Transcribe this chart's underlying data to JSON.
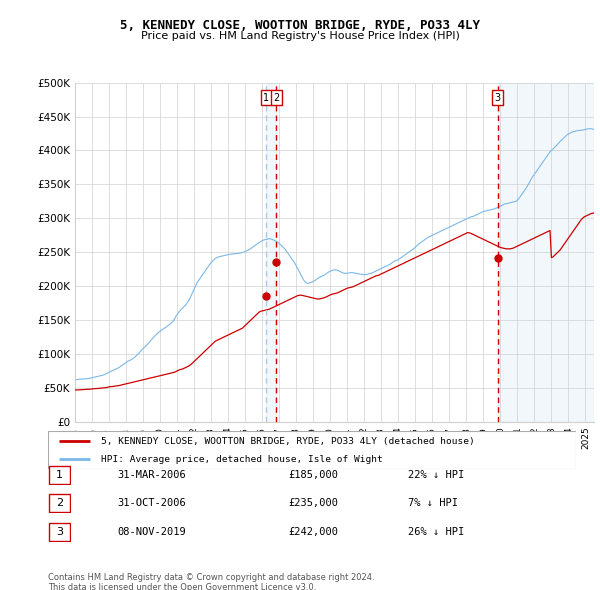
{
  "title": "5, KENNEDY CLOSE, WOOTTON BRIDGE, RYDE, PO33 4LY",
  "subtitle": "Price paid vs. HM Land Registry's House Price Index (HPI)",
  "ylabel_ticks": [
    "£0",
    "£50K",
    "£100K",
    "£150K",
    "£200K",
    "£250K",
    "£300K",
    "£350K",
    "£400K",
    "£450K",
    "£500K"
  ],
  "ytick_values": [
    0,
    50000,
    100000,
    150000,
    200000,
    250000,
    300000,
    350000,
    400000,
    450000,
    500000
  ],
  "xlim": [
    1995.0,
    2025.5
  ],
  "ylim": [
    0,
    500000
  ],
  "hpi_color": "#7ab8e8",
  "price_color": "#cc0000",
  "vline1_color": "#aacce8",
  "vline2_color": "#cc0000",
  "transactions": [
    {
      "label": "1",
      "year": 2006.246,
      "price": 185000,
      "date": "31-MAR-2006",
      "pct": "22%",
      "dir": "↓"
    },
    {
      "label": "2",
      "year": 2006.831,
      "price": 235000,
      "date": "31-OCT-2006",
      "pct": "7%",
      "dir": "↓"
    },
    {
      "label": "3",
      "year": 2019.846,
      "price": 242000,
      "date": "08-NOV-2019",
      "pct": "26%",
      "dir": "↓"
    }
  ],
  "legend_price_label": "5, KENNEDY CLOSE, WOOTTON BRIDGE, RYDE, PO33 4LY (detached house)",
  "legend_hpi_label": "HPI: Average price, detached house, Isle of Wight",
  "footer1": "Contains HM Land Registry data © Crown copyright and database right 2024.",
  "footer2": "This data is licensed under the Open Government Licence v3.0.",
  "hpi_monthly": {
    "start_year": 1995.0,
    "step": 0.08333,
    "values": [
      62000,
      62200,
      62500,
      62800,
      63000,
      63100,
      63200,
      63300,
      63500,
      63700,
      64000,
      64500,
      65000,
      65500,
      66000,
      66500,
      67000,
      67500,
      68000,
      68500,
      69000,
      70000,
      71000,
      72000,
      73000,
      74000,
      75000,
      76000,
      77000,
      78000,
      79000,
      80000,
      81500,
      83000,
      84500,
      86000,
      87500,
      89000,
      90000,
      91000,
      92000,
      93500,
      95000,
      97000,
      99000,
      101000,
      103500,
      106000,
      108000,
      110000,
      112000,
      114000,
      116500,
      119000,
      121000,
      123500,
      126000,
      128000,
      130000,
      132000,
      133500,
      135000,
      136500,
      138000,
      139500,
      141000,
      142500,
      144000,
      146000,
      148000,
      151000,
      155000,
      158000,
      161000,
      163500,
      166000,
      168000,
      170000,
      172000,
      175000,
      178000,
      182000,
      186500,
      191000,
      195500,
      200000,
      204500,
      208000,
      211000,
      214000,
      217000,
      220000,
      223000,
      226000,
      229000,
      232000,
      234500,
      237000,
      239000,
      241000,
      242000,
      243000,
      243500,
      244000,
      244500,
      245000,
      245500,
      246000,
      246500,
      247000,
      247200,
      247400,
      247500,
      247800,
      248000,
      248200,
      248500,
      249000,
      249500,
      250000,
      251000,
      252000,
      253000,
      254000,
      255500,
      257000,
      258500,
      260000,
      261500,
      263000,
      264500,
      266000,
      267000,
      268000,
      268500,
      269000,
      269500,
      270000,
      269500,
      269000,
      268000,
      267000,
      266000,
      265000,
      263000,
      261000,
      259000,
      257000,
      255000,
      252000,
      249000,
      246000,
      243000,
      240000,
      237000,
      234000,
      230000,
      226000,
      222000,
      218000,
      214000,
      210000,
      207000,
      205000,
      204000,
      204500,
      205000,
      206000,
      207000,
      208000,
      209500,
      211000,
      212500,
      213500,
      214500,
      215500,
      216500,
      218000,
      219500,
      221000,
      222000,
      223000,
      223500,
      224000,
      224000,
      223500,
      222500,
      221500,
      220500,
      219500,
      219000,
      219000,
      219000,
      219500,
      219800,
      220000,
      219800,
      219500,
      219000,
      218500,
      218000,
      217800,
      217500,
      217000,
      217000,
      217000,
      217500,
      218000,
      218500,
      219000,
      220000,
      221000,
      222000,
      223000,
      224000,
      225000,
      226000,
      227000,
      228000,
      229000,
      230000,
      231000,
      232000,
      233500,
      235000,
      236500,
      237500,
      238000,
      239000,
      240500,
      242000,
      243500,
      245000,
      246500,
      248000,
      249500,
      251000,
      252500,
      254000,
      255500,
      257500,
      259500,
      261500,
      263000,
      264500,
      266000,
      267500,
      269000,
      270500,
      272000,
      273000,
      274000,
      275000,
      276000,
      277000,
      278000,
      279000,
      280000,
      281000,
      282000,
      283000,
      284000,
      285000,
      286000,
      287000,
      288000,
      289000,
      290000,
      291000,
      292000,
      293000,
      294000,
      295000,
      296000,
      297000,
      298000,
      299000,
      300000,
      301000,
      302000,
      302500,
      303000,
      304000,
      305000,
      306000,
      307000,
      308000,
      309000,
      310000,
      310500,
      311000,
      311500,
      312000,
      312500,
      313000,
      313500,
      314000,
      315000,
      316000,
      317000,
      318000,
      319000,
      320000,
      321000,
      321500,
      322000,
      322500,
      323000,
      323500,
      324000,
      324500,
      325000,
      327000,
      329000,
      332000,
      335000,
      338000,
      341000,
      344000,
      347500,
      351000,
      355000,
      359000,
      362000,
      365000,
      368000,
      371000,
      374000,
      377000,
      380000,
      383000,
      386000,
      389000,
      392000,
      395000,
      398000,
      400000,
      402000,
      404000,
      406000,
      408500,
      410500,
      413000,
      415000,
      417000,
      419000,
      421000,
      423000,
      424000,
      425500,
      426500,
      427500,
      428000,
      428500,
      429000,
      429500,
      429500,
      430000,
      430000,
      430500,
      431000,
      431500,
      432000,
      432000,
      432000,
      431500,
      431000,
      430500,
      430000,
      429500,
      429000,
      428000,
      427000,
      426000,
      425500,
      425000,
      424000,
      423000,
      422500,
      422000,
      421500,
      421000,
      420500,
      420000
    ]
  },
  "price_monthly": {
    "start_year": 1995.0,
    "step": 0.08333,
    "values": [
      47000,
      47000,
      47000,
      47200,
      47500,
      47500,
      47500,
      47800,
      48000,
      48000,
      48000,
      48200,
      48500,
      48800,
      49000,
      49000,
      49200,
      49500,
      49500,
      49800,
      50000,
      50200,
      50500,
      51000,
      51500,
      52000,
      52000,
      52200,
      52500,
      52800,
      53000,
      53500,
      54000,
      54500,
      55000,
      55500,
      56000,
      56500,
      57000,
      57500,
      58000,
      58500,
      59000,
      59500,
      60000,
      60500,
      61000,
      61500,
      62000,
      62500,
      63000,
      63500,
      64000,
      64500,
      65000,
      65500,
      66000,
      66500,
      67000,
      67500,
      68000,
      68500,
      69000,
      69500,
      70000,
      70500,
      71000,
      71500,
      72000,
      72500,
      73000,
      74000,
      75000,
      76000,
      77000,
      77500,
      78000,
      79000,
      80000,
      81000,
      82000,
      83500,
      85000,
      87000,
      89000,
      91000,
      93000,
      95000,
      97000,
      99000,
      101000,
      103000,
      105000,
      107000,
      109000,
      111000,
      113000,
      115000,
      117000,
      119000,
      120000,
      121000,
      122000,
      123000,
      124000,
      125000,
      126000,
      127000,
      128000,
      129000,
      130000,
      131000,
      132000,
      133000,
      134000,
      135000,
      136000,
      137000,
      138000,
      140000,
      142000,
      144000,
      146000,
      148000,
      150000,
      152000,
      154000,
      156000,
      158000,
      160000,
      162000,
      163000,
      163500,
      164000,
      164500,
      165000,
      165500,
      166000,
      167000,
      168000,
      169000,
      170000,
      171000,
      172000,
      173000,
      174000,
      175000,
      176000,
      177000,
      178000,
      179000,
      180000,
      181000,
      182000,
      183000,
      184000,
      185000,
      186000,
      186500,
      186800,
      186500,
      186000,
      185500,
      185000,
      184500,
      184000,
      183500,
      183000,
      182500,
      182000,
      181500,
      181000,
      181000,
      181500,
      182000,
      182500,
      183000,
      184000,
      185000,
      186000,
      187000,
      188000,
      188500,
      189000,
      189500,
      190000,
      191000,
      192000,
      193000,
      194000,
      195000,
      196000,
      197000,
      197500,
      198000,
      198500,
      199000,
      200000,
      201000,
      202000,
      203000,
      204000,
      205000,
      206000,
      207000,
      208000,
      209000,
      210000,
      211000,
      212000,
      213000,
      214000,
      215000,
      215500,
      216000,
      217000,
      218000,
      219000,
      220000,
      221000,
      222000,
      223000,
      224000,
      225000,
      226000,
      227000,
      228000,
      229000,
      230000,
      231000,
      232000,
      233000,
      234000,
      235000,
      236000,
      237000,
      238000,
      239000,
      240000,
      241000,
      242000,
      243000,
      244000,
      245000,
      246000,
      247000,
      248000,
      249000,
      250000,
      251000,
      252000,
      253000,
      254000,
      255000,
      256000,
      257000,
      258000,
      259000,
      260000,
      261000,
      262000,
      263000,
      264000,
      265000,
      266000,
      267000,
      268000,
      269000,
      270000,
      271000,
      272000,
      273000,
      274000,
      275000,
      276000,
      277000,
      278000,
      279000,
      278500,
      278000,
      277000,
      276000,
      275000,
      274000,
      273000,
      272000,
      271000,
      270000,
      269000,
      268000,
      267000,
      266000,
      265000,
      264000,
      263000,
      262000,
      261000,
      260000,
      259000,
      258000,
      257000,
      256500,
      256000,
      255500,
      255000,
      255000,
      255000,
      255000,
      255500,
      256000,
      257000,
      258000,
      259000,
      260000,
      261000,
      262000,
      263000,
      264000,
      265000,
      266000,
      267000,
      268000,
      269000,
      270000,
      271000,
      272000,
      273000,
      274000,
      275000,
      276000,
      277000,
      278000,
      279000,
      280000,
      281000,
      282000,
      242000,
      243000,
      245000,
      247000,
      249000,
      251000,
      253000,
      256000,
      259000,
      262000,
      265000,
      268000,
      271000,
      274000,
      277000,
      280000,
      283000,
      286000,
      289000,
      292000,
      295000,
      298000,
      300000,
      302000,
      303000,
      304000,
      305000,
      306000,
      307000,
      307500,
      307800,
      308000,
      307500,
      307000,
      306500,
      306000,
      305000,
      304000,
      303000,
      302000,
      301000,
      300000,
      299000,
      298000,
      297000,
      296000,
      295000,
      294000
    ]
  }
}
